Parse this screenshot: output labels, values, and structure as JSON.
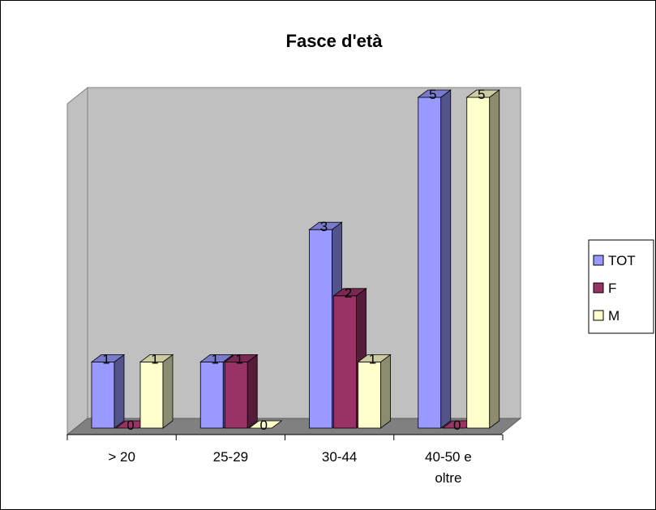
{
  "chart_data": {
    "type": "bar",
    "title": "Fasce d'età",
    "xlabel": "",
    "ylabel": "",
    "categories": [
      "> 20",
      "25-29",
      "30-44",
      "40-50 e oltre"
    ],
    "series": [
      {
        "name": "TOT",
        "values": [
          1,
          1,
          3,
          5
        ],
        "color": "#9999ff"
      },
      {
        "name": "F",
        "values": [
          0,
          1,
          2,
          0
        ],
        "color": "#993366"
      },
      {
        "name": "M",
        "values": [
          1,
          0,
          1,
          5
        ],
        "color": "#ffffcc"
      }
    ],
    "ylim": [
      0,
      5
    ],
    "grid": false,
    "legend": "right",
    "data_labels": true,
    "wall_color": "#c0c0c0",
    "floor_color": "#808080"
  }
}
